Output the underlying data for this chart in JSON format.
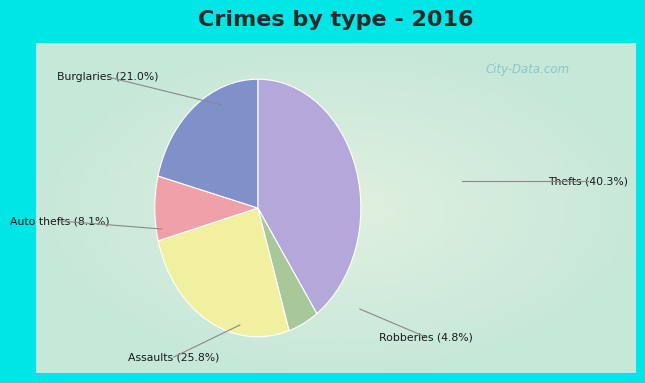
{
  "title": "Crimes by type - 2016",
  "labels": [
    "Thefts",
    "Robberies",
    "Assaults",
    "Auto thefts",
    "Burglaries"
  ],
  "values": [
    40.3,
    4.8,
    25.8,
    8.1,
    21.0
  ],
  "colors": [
    "#b3a8d9",
    "#a8c89a",
    "#f0f0a0",
    "#f0a0a8",
    "#8090c8"
  ],
  "label_texts": [
    "Thefts (40.3%)",
    "Robberies (4.8%)",
    "Assaults (25.8%)",
    "Auto thefts (8.1%)",
    "Burglaries (21.0%)"
  ],
  "title_fontsize": 16,
  "title_fontweight": "bold",
  "bg_cyan": "#00e5e5",
  "bg_main": "#c8e8d8",
  "watermark": "City-Data.com",
  "title_bar_height": 0.115,
  "bottom_bar_height": 0.06
}
